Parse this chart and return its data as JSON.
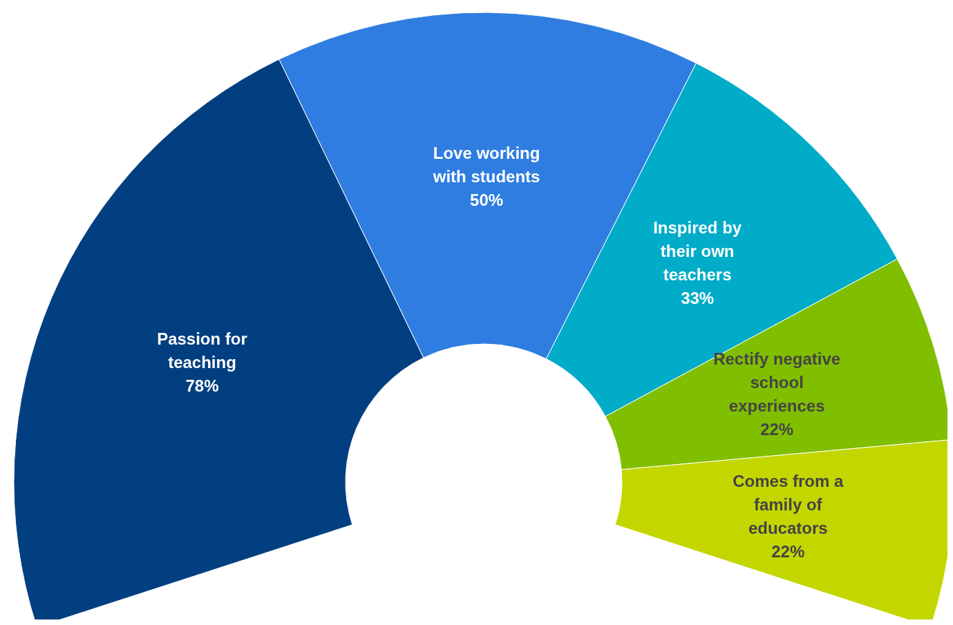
{
  "chart_data": {
    "type": "donut",
    "categories": [
      "Passion for teaching",
      "Love working with students",
      "Inspired by their own teachers",
      "Rectify negative school experiences",
      "Comes from a family of educators"
    ],
    "values": [
      78,
      50,
      33,
      22,
      22
    ],
    "value_labels": [
      "78%",
      "50%",
      "33%",
      "22%",
      "22%"
    ],
    "colors": [
      "#023f80",
      "#2f7de1",
      "#00acc8",
      "#80bf00",
      "#c4d600"
    ],
    "legend": false
  }
}
